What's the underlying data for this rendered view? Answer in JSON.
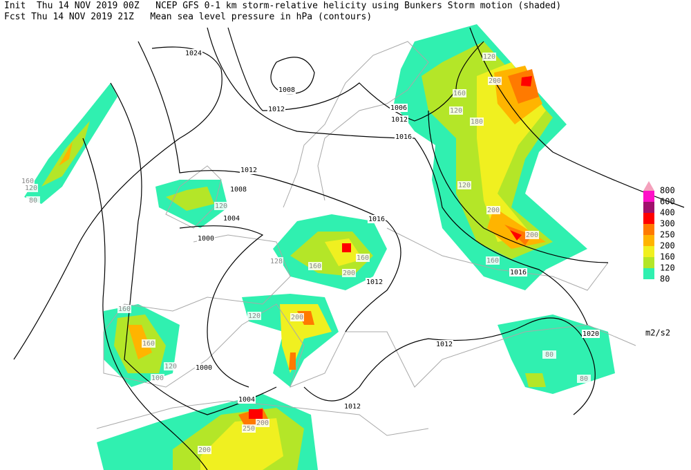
{
  "header": {
    "line1": "Init  Thu 14 NOV 2019 00Z   NCEP GFS 0-1 km storm-relative helicity using Bunkers Storm motion (shaded)",
    "line2": "Fcst Thu 14 NOV 2019 21Z   Mean sea level pressure in hPa (contours)"
  },
  "legend": {
    "levels": [
      800,
      600,
      400,
      300,
      250,
      200,
      160,
      120,
      80
    ],
    "colors": [
      "#f4a0bc",
      "#ff10c8",
      "#a0106c",
      "#ff0000",
      "#ff7a00",
      "#ffb400",
      "#f0f020",
      "#b4e628",
      "#30f0b0"
    ],
    "unit": "m2/s2"
  },
  "isobar_labels": [
    1024,
    1008,
    1012,
    1006,
    1012,
    1016,
    1012,
    1008,
    1004,
    1000,
    1016,
    1012,
    1016,
    1020,
    1012,
    1000,
    1004,
    1012
  ],
  "helicity_labels": [
    120,
    160,
    120,
    180,
    200,
    120,
    200,
    160,
    200,
    160,
    120,
    80,
    120,
    160,
    128,
    160,
    200,
    120,
    200,
    160,
    160,
    120,
    100,
    200,
    250,
    200,
    80,
    80
  ]
}
